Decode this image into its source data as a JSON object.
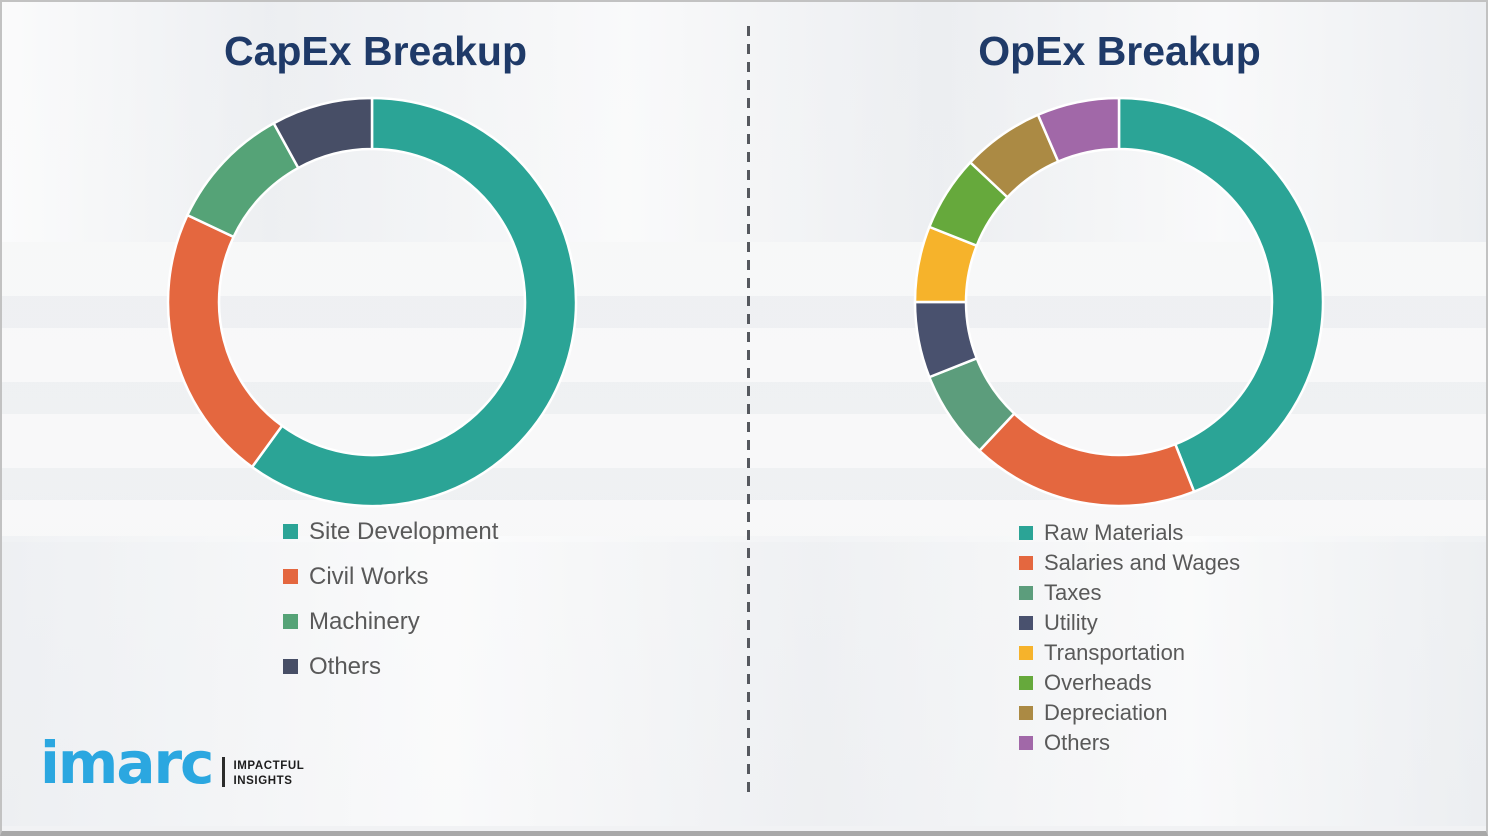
{
  "chart_data": [
    {
      "type": "pie",
      "subtype": "donut",
      "title": "CapEx Breakup",
      "title_color": "#1f3a68",
      "categories": [
        "Site Development",
        "Civil Works",
        "Machinery",
        "Others"
      ],
      "values": [
        60,
        22,
        10,
        8
      ],
      "colors": [
        "#2ba496",
        "#e4673f",
        "#55a377",
        "#474e66"
      ],
      "start_angle_deg": 0,
      "direction": "clockwise",
      "legend_position": "below-left"
    },
    {
      "type": "pie",
      "subtype": "donut",
      "title": "OpEx Breakup",
      "title_color": "#1f3a68",
      "categories": [
        "Raw Materials",
        "Salaries and Wages",
        "Taxes",
        "Utility",
        "Transportation",
        "Overheads",
        "Depreciation",
        "Others"
      ],
      "values": [
        44,
        18,
        7,
        6,
        6,
        6,
        6.5,
        6.5
      ],
      "colors": [
        "#2ba496",
        "#e4673f",
        "#5c9d7c",
        "#49516e",
        "#f6b32b",
        "#66a93c",
        "#ab8a44",
        "#a168a8"
      ],
      "start_angle_deg": 0,
      "direction": "clockwise",
      "legend_position": "below-left"
    }
  ],
  "logo": {
    "brand": "imarc",
    "brand_color": "#2ba7e0",
    "tagline": [
      "IMPACTFUL",
      "INSIGHTS"
    ]
  }
}
